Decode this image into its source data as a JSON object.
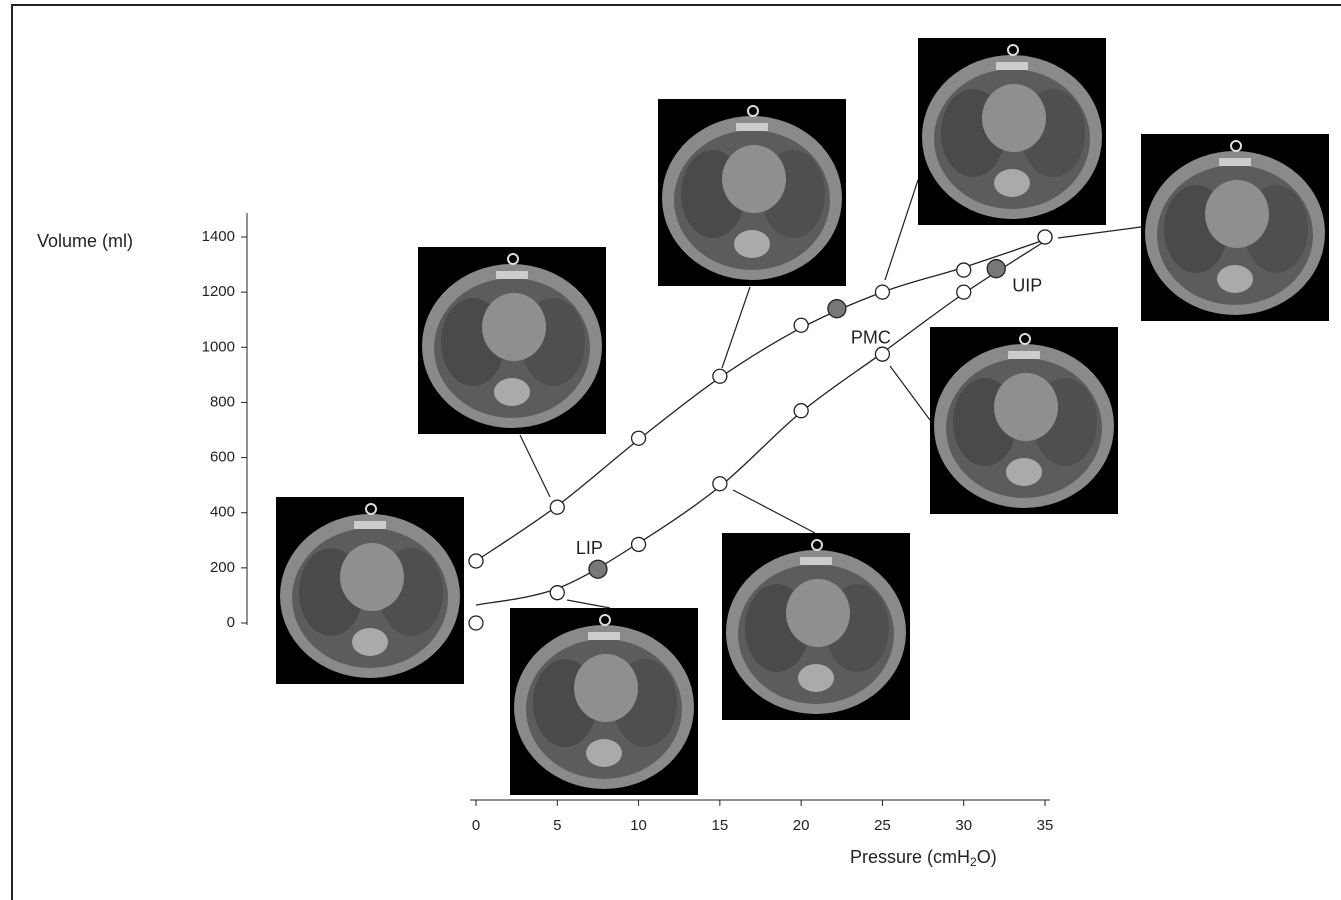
{
  "chart_data": {
    "type": "line",
    "x": [
      0,
      5,
      10,
      15,
      20,
      25,
      30,
      35
    ],
    "series": [
      {
        "values": [
          0,
          110,
          285,
          505,
          770,
          975,
          1200,
          1400
        ],
        "fit": [
          65,
          125,
          290,
          495,
          765,
          980,
          1195,
          1385
        ]
      },
      {
        "values": [
          225,
          420,
          670,
          895,
          1080,
          1200,
          1280,
          1400
        ],
        "fit": [
          225,
          425,
          665,
          890,
          1070,
          1200,
          1290,
          1390
        ]
      }
    ],
    "points": [
      {
        "label": "LIP",
        "x": 7.5,
        "y": 195
      },
      {
        "label": "PMC",
        "x": 22.2,
        "y": 1140
      },
      {
        "label": "UIP",
        "x": 32,
        "y": 1285
      }
    ],
    "point_color": "#777777",
    "xlim": [
      0,
      35
    ],
    "xticks": [
      0,
      5,
      10,
      15,
      20,
      25,
      30,
      35
    ],
    "ylim": [
      0,
      1400
    ],
    "yticks": [
      0,
      200,
      400,
      600,
      800,
      1000,
      1200,
      1400
    ],
    "ylabel": "Volume (ml)",
    "xlabel": {
      "start": "Pressure (cmH",
      "sub": "2",
      "end": "O)"
    }
  }
}
